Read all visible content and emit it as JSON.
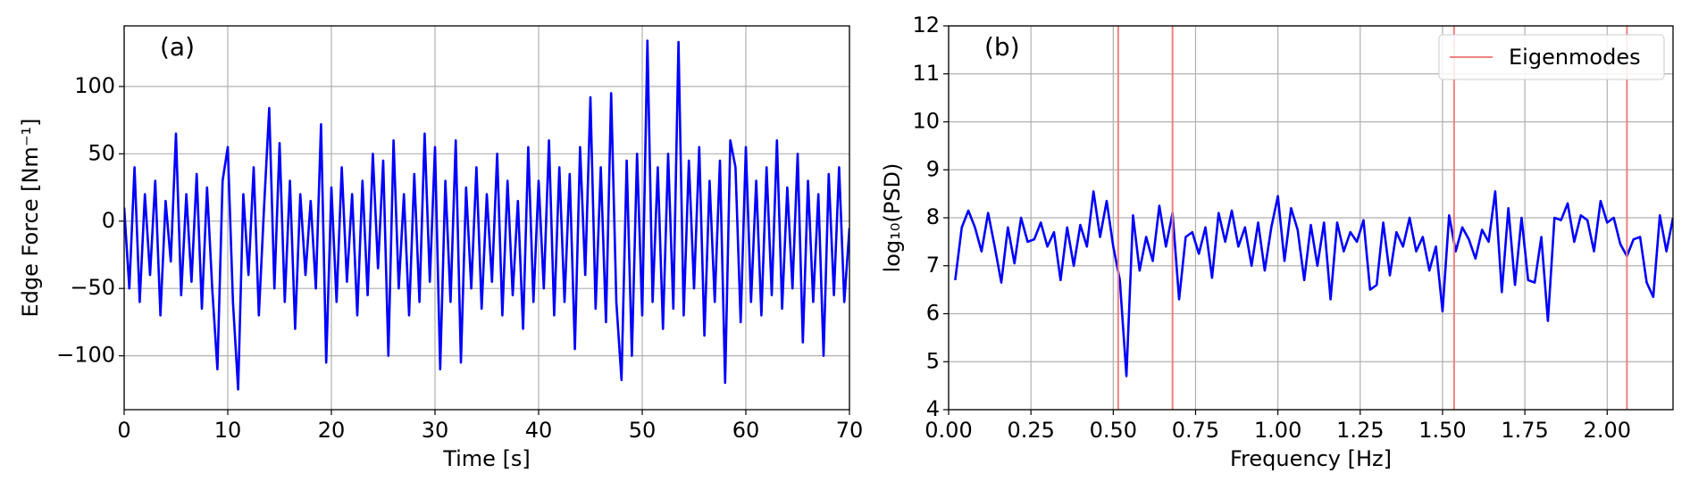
{
  "chart_data": [
    {
      "type": "line",
      "annotation": "(a)",
      "xlabel": "Time [s]",
      "ylabel": "Edge Force [Nm⁻¹]",
      "xlim": [
        0,
        70
      ],
      "xticks": [
        0,
        10,
        20,
        30,
        40,
        50,
        60,
        70
      ],
      "ylim": [
        -140,
        145
      ],
      "yticks": [
        {
          "value": -100,
          "label": "−100"
        },
        {
          "value": -50,
          "label": "−50"
        },
        0,
        50,
        100
      ],
      "grid": true,
      "x": [
        0,
        0.5,
        1,
        1.5,
        2,
        2.5,
        3,
        3.5,
        4,
        4.5,
        5,
        5.5,
        6,
        6.5,
        7,
        7.5,
        8,
        8.5,
        9,
        9.5,
        10,
        10.5,
        11,
        11.5,
        12,
        12.5,
        13,
        13.5,
        14,
        14.5,
        15,
        15.5,
        16,
        16.5,
        17,
        17.5,
        18,
        18.5,
        19,
        19.5,
        20,
        20.5,
        21,
        21.5,
        22,
        22.5,
        23,
        23.5,
        24,
        24.5,
        25,
        25.5,
        26,
        26.5,
        27,
        27.5,
        28,
        28.5,
        29,
        29.5,
        30,
        30.5,
        31,
        31.5,
        32,
        32.5,
        33,
        33.5,
        34,
        34.5,
        35,
        35.5,
        36,
        36.5,
        37,
        37.5,
        38,
        38.5,
        39,
        39.5,
        40,
        40.5,
        41,
        41.5,
        42,
        42.5,
        43,
        43.5,
        44,
        44.5,
        45,
        45.5,
        46,
        46.5,
        47,
        47.5,
        48,
        48.5,
        49,
        49.5,
        50,
        50.5,
        51,
        51.5,
        52,
        52.5,
        53,
        53.5,
        54,
        54.5,
        55,
        55.5,
        56,
        56.5,
        57,
        57.5,
        58,
        58.5,
        59,
        59.5,
        60,
        60.5,
        61,
        61.5,
        62,
        62.5,
        63,
        63.5,
        64,
        64.5,
        65,
        65.5,
        66,
        66.5,
        67,
        67.5,
        68,
        68.5,
        69,
        69.5,
        70
      ],
      "series": [
        {
          "color": "#0000ff",
          "values": [
            10,
            -50,
            40,
            -60,
            20,
            -40,
            30,
            -70,
            15,
            -30,
            65,
            -55,
            20,
            -45,
            35,
            -65,
            25,
            -50,
            -110,
            30,
            55,
            -60,
            -125,
            20,
            -40,
            40,
            -70,
            10,
            84,
            -50,
            58,
            -60,
            30,
            -80,
            20,
            -40,
            15,
            -50,
            72,
            -105,
            25,
            -60,
            40,
            -45,
            20,
            -70,
            30,
            -55,
            50,
            -35,
            45,
            -100,
            60,
            -50,
            20,
            -70,
            35,
            -60,
            65,
            -45,
            55,
            -110,
            30,
            -60,
            60,
            -105,
            25,
            -50,
            40,
            -65,
            20,
            -45,
            50,
            -70,
            30,
            -55,
            15,
            -80,
            55,
            -60,
            30,
            -50,
            60,
            -70,
            40,
            -60,
            35,
            -95,
            55,
            -40,
            92,
            -65,
            40,
            -75,
            95,
            -60,
            -118,
            45,
            -100,
            50,
            -70,
            134,
            -60,
            40,
            -80,
            50,
            -65,
            133,
            -70,
            45,
            -50,
            55,
            -85,
            30,
            -60,
            45,
            -120,
            60,
            40,
            -75,
            55,
            -60,
            30,
            -70,
            40,
            -55,
            60,
            -65,
            25,
            -50,
            50,
            -90,
            30,
            -60,
            20,
            -100,
            35,
            -55,
            40,
            -60,
            -5
          ]
        }
      ]
    },
    {
      "type": "line",
      "annotation": "(b)",
      "xlabel": "Frequency [Hz]",
      "ylabel": "log₁₀(PSD)",
      "xlim": [
        0,
        2.2
      ],
      "xticks": [
        {
          "value": 0,
          "label": "0.00"
        },
        {
          "value": 0.25,
          "label": "0.25"
        },
        {
          "value": 0.5,
          "label": "0.50"
        },
        {
          "value": 0.75,
          "label": "0.75"
        },
        {
          "value": 1,
          "label": "1.00"
        },
        {
          "value": 1.25,
          "label": "1.25"
        },
        {
          "value": 1.5,
          "label": "1.50"
        },
        {
          "value": 1.75,
          "label": "1.75"
        },
        {
          "value": 2,
          "label": "2.00"
        }
      ],
      "ylim": [
        4,
        12
      ],
      "yticks": [
        4,
        5,
        6,
        7,
        8,
        9,
        10,
        11,
        12
      ],
      "grid": true,
      "legend": "upper right",
      "x": [
        0.02,
        0.04,
        0.06,
        0.08,
        0.1,
        0.12,
        0.14,
        0.16,
        0.18,
        0.2,
        0.22,
        0.24,
        0.26,
        0.28,
        0.3,
        0.32,
        0.34,
        0.36,
        0.38,
        0.4,
        0.42,
        0.44,
        0.46,
        0.48,
        0.5,
        0.52,
        0.54,
        0.56,
        0.58,
        0.6,
        0.62,
        0.64,
        0.66,
        0.68,
        0.7,
        0.72,
        0.74,
        0.76,
        0.78,
        0.8,
        0.82,
        0.84,
        0.86,
        0.88,
        0.9,
        0.92,
        0.94,
        0.96,
        0.98,
        1,
        1.02,
        1.04,
        1.06,
        1.08,
        1.1,
        1.12,
        1.14,
        1.16,
        1.18,
        1.2,
        1.22,
        1.24,
        1.26,
        1.28,
        1.3,
        1.32,
        1.34,
        1.36,
        1.38,
        1.4,
        1.42,
        1.44,
        1.46,
        1.48,
        1.5,
        1.52,
        1.54,
        1.56,
        1.58,
        1.6,
        1.62,
        1.64,
        1.66,
        1.68,
        1.7,
        1.72,
        1.74,
        1.76,
        1.78,
        1.8,
        1.82,
        1.84,
        1.86,
        1.88,
        1.9,
        1.92,
        1.94,
        1.96,
        1.98,
        2,
        2.02,
        2.04,
        2.06,
        2.08,
        2.1,
        2.12,
        2.14,
        2.16,
        2.18,
        2.2
      ],
      "series": [
        {
          "color": "#0000ff",
          "values": [
            6.7,
            7.8,
            8.15,
            7.8,
            7.3,
            8.1,
            7.4,
            6.65,
            7.8,
            7.05,
            8.0,
            7.5,
            7.55,
            7.9,
            7.4,
            7.7,
            6.7,
            7.8,
            7.0,
            7.85,
            7.4,
            8.55,
            7.6,
            8.35,
            7.4,
            6.7,
            4.7,
            8.05,
            6.9,
            7.6,
            7.1,
            8.25,
            7.4,
            8.1,
            6.3,
            7.6,
            7.7,
            7.25,
            7.8,
            6.75,
            8.1,
            7.5,
            8.15,
            7.4,
            7.8,
            7.0,
            7.9,
            6.9,
            7.8,
            8.45,
            7.1,
            8.2,
            7.75,
            6.7,
            7.85,
            7.0,
            7.9,
            6.3,
            7.9,
            7.3,
            7.7,
            7.5,
            7.95,
            6.5,
            6.6,
            7.9,
            6.8,
            7.7,
            7.4,
            8.0,
            7.3,
            7.6,
            6.9,
            7.4,
            6.05,
            8.05,
            7.3,
            7.8,
            7.55,
            7.15,
            7.75,
            7.5,
            8.55,
            6.45,
            8.2,
            6.6,
            8.0,
            6.7,
            6.65,
            7.6,
            5.85,
            8.0,
            7.95,
            8.3,
            7.5,
            8.05,
            7.95,
            7.3,
            8.35,
            7.9,
            8.0,
            7.45,
            7.2,
            7.55,
            7.6,
            6.65,
            6.35,
            8.05,
            7.3,
            8.0
          ]
        }
      ],
      "vlines": {
        "name": "Eigenmodes",
        "color": "#f08080",
        "values": [
          0.515,
          0.68,
          1.535,
          2.06
        ]
      }
    }
  ]
}
